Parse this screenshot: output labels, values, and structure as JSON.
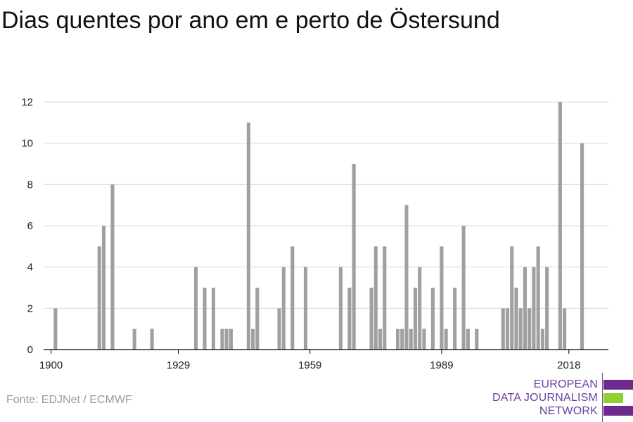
{
  "title": "Dias quentes por ano em e perto de Östersund",
  "source": "Fonte: EDJNet / ECMWF",
  "logo": {
    "lines": [
      "EUROPEAN",
      "DATA JOURNALISM",
      "NETWORK"
    ],
    "colors": {
      "purple": "#6b2a8c",
      "green": "#8fd12f"
    }
  },
  "colors": {
    "bar": "#a0a0a0",
    "grid": "#d9d9d9",
    "axis": "#000000"
  },
  "chart_data": {
    "type": "bar",
    "title": "Dias quentes por ano em e perto de Östersund",
    "xlabel": "",
    "ylabel": "",
    "xlim": [
      1900,
      2018
    ],
    "ylim": [
      0,
      12
    ],
    "xticks": [
      1900,
      1929,
      1959,
      1989,
      2018
    ],
    "yticks": [
      0,
      2,
      4,
      6,
      8,
      10,
      12
    ],
    "grid": true,
    "x": [
      1901,
      1911,
      1912,
      1914,
      1919,
      1923,
      1933,
      1935,
      1937,
      1939,
      1940,
      1941,
      1945,
      1946,
      1947,
      1952,
      1953,
      1955,
      1958,
      1966,
      1968,
      1969,
      1973,
      1974,
      1975,
      1976,
      1979,
      1980,
      1981,
      1982,
      1983,
      1984,
      1985,
      1987,
      1989,
      1990,
      1992,
      1994,
      1995,
      1997,
      2003,
      2004,
      2005,
      2006,
      2007,
      2008,
      2009,
      2010,
      2011,
      2012,
      2013,
      2016,
      2017,
      2021
    ],
    "values": [
      2,
      5,
      6,
      8,
      1,
      1,
      4,
      3,
      3,
      1,
      1,
      1,
      11,
      1,
      3,
      2,
      4,
      5,
      4,
      4,
      3,
      9,
      3,
      5,
      1,
      5,
      1,
      1,
      7,
      1,
      3,
      4,
      1,
      3,
      5,
      1,
      3,
      6,
      1,
      1,
      2,
      2,
      5,
      3,
      2,
      4,
      2,
      4,
      5,
      1,
      4,
      12,
      2,
      10
    ]
  }
}
